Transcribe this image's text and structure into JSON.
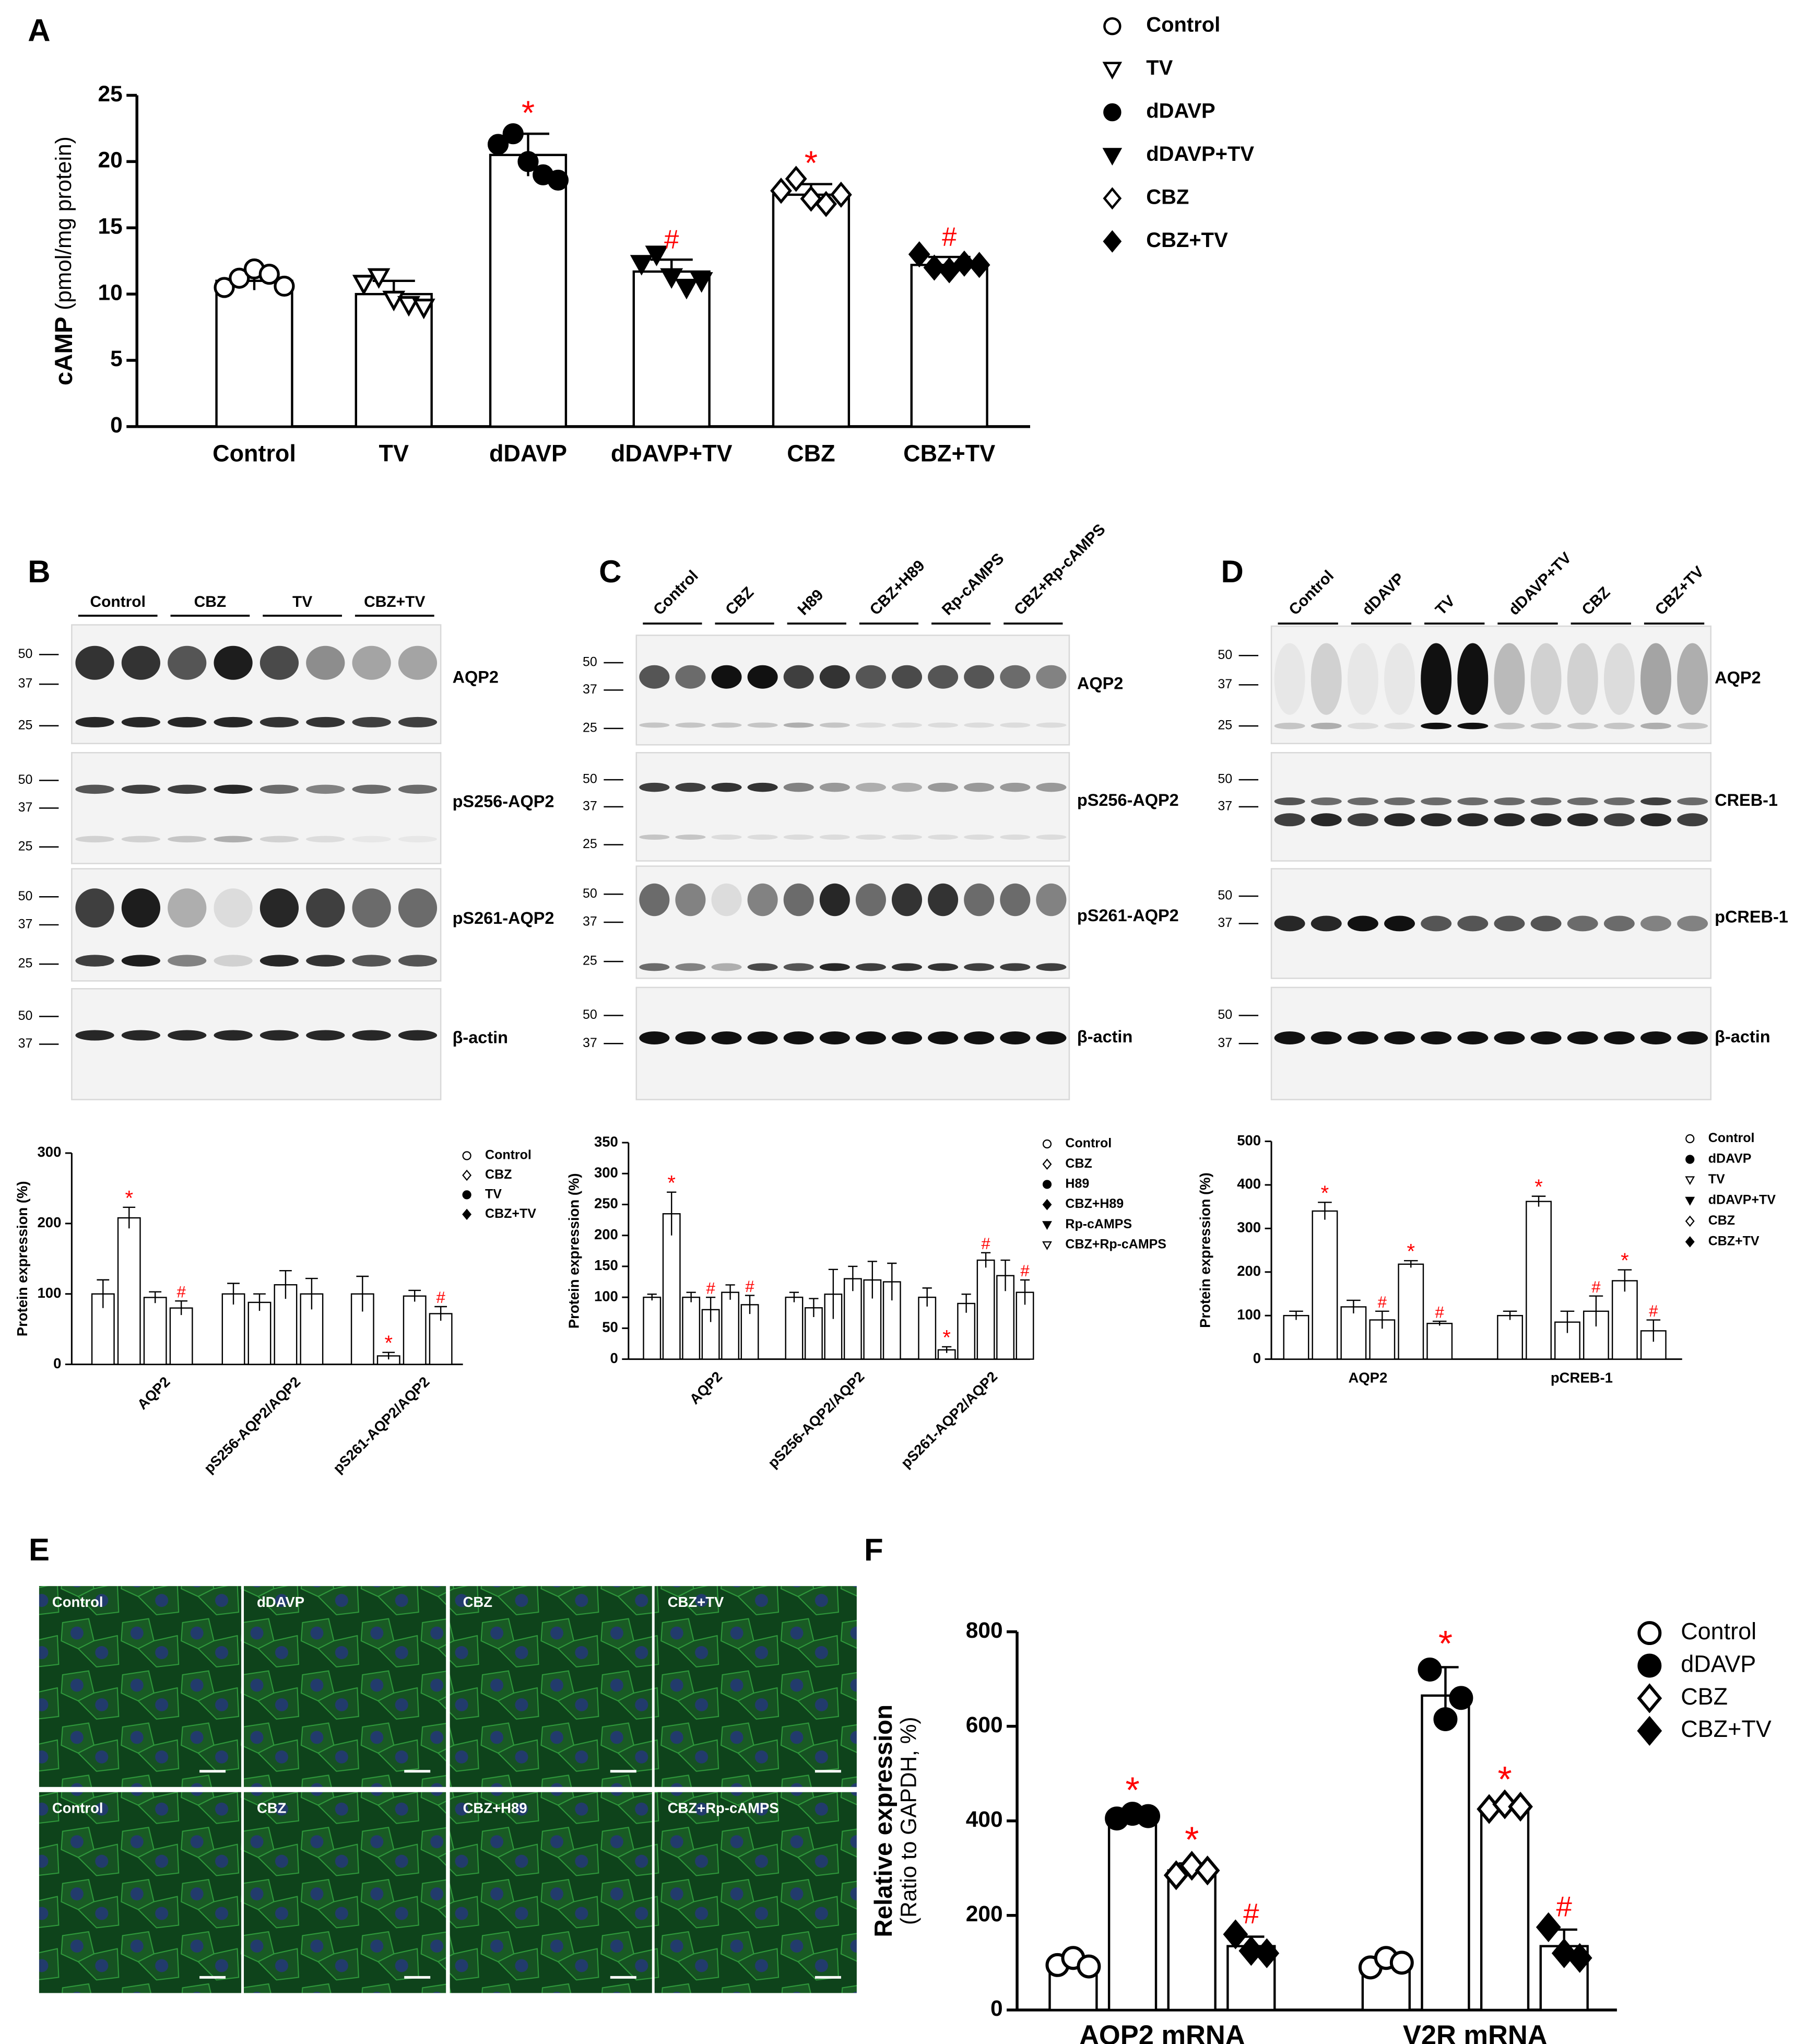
{
  "panel_letters": [
    "A",
    "B",
    "C",
    "D",
    "E",
    "F"
  ],
  "chart_data": [
    {
      "type": "bar",
      "ylabel_bold": "cAMP",
      "ylabel": "(pmol/mg protein)",
      "categories": [
        "Control",
        "TV",
        "dDAVP",
        "dDAVP+TV",
        "CBZ",
        "CBZ+TV"
      ],
      "values": [
        11,
        10,
        20.5,
        11.7,
        17.5,
        12.2
      ],
      "errors": [
        0.7,
        1.0,
        1.6,
        0.9,
        0.8,
        0.6
      ],
      "points": [
        [
          10.5,
          11.2,
          11.9,
          11.5,
          10.6
        ],
        [
          10.8,
          11.3,
          9.6,
          9.2,
          9.0
        ],
        [
          21.3,
          22.1,
          20.0,
          19.0,
          18.6
        ],
        [
          12.3,
          13.0,
          11.3,
          10.5,
          11.0
        ],
        [
          17.8,
          18.7,
          17.2,
          16.8,
          17.5
        ],
        [
          13.0,
          12.0,
          11.8,
          12.3,
          12.2
        ]
      ],
      "markers": [
        "circle-open",
        "triangle-down-open",
        "circle",
        "triangle-down",
        "diamond-open",
        "diamond"
      ],
      "annotations": [
        null,
        null,
        "*",
        "#",
        "*",
        "#"
      ],
      "annotation_color": "#ff0000",
      "bar_color": "#ffffff",
      "ylim": [
        0,
        25
      ],
      "yticks": [
        0,
        5,
        10,
        15,
        20,
        25
      ],
      "legend": true
    },
    {
      "type": "grouped-bar",
      "ylabel": "Protein expression (%)",
      "categories": [
        "AQP2",
        "pS256-AQP2/AQP2",
        "pS261-AQP2/AQP2"
      ],
      "series": [
        {
          "name": "Control",
          "marker": "circle-open",
          "values": [
            100,
            100,
            100
          ],
          "errors": [
            20,
            15,
            25
          ],
          "annotations": [
            null,
            null,
            null
          ]
        },
        {
          "name": "CBZ",
          "marker": "diamond-open",
          "values": [
            208,
            88,
            12
          ],
          "errors": [
            15,
            12,
            5
          ],
          "annotations": [
            "*",
            null,
            "*"
          ]
        },
        {
          "name": "TV",
          "marker": "circle",
          "values": [
            95,
            113,
            97
          ],
          "errors": [
            8,
            20,
            8
          ],
          "annotations": [
            null,
            null,
            null
          ]
        },
        {
          "name": "CBZ+TV",
          "marker": "diamond",
          "values": [
            80,
            100,
            72
          ],
          "errors": [
            10,
            22,
            10
          ],
          "annotations": [
            "#",
            null,
            "#"
          ]
        }
      ],
      "annotation_color": "#ff0000",
      "bar_color": "#ffffff",
      "ylim": [
        0,
        300
      ],
      "yticks": [
        0,
        100,
        200,
        300
      ],
      "legend": true
    },
    {
      "type": "grouped-bar",
      "ylabel": "Protein expression (%)",
      "categories": [
        "AQP2",
        "pS256-AQP2/AQP2",
        "pS261-AQP2/AQP2"
      ],
      "series": [
        {
          "name": "Control",
          "marker": "circle-open",
          "values": [
            100,
            100,
            100
          ],
          "errors": [
            5,
            8,
            15
          ],
          "annotations": [
            null,
            null,
            null
          ]
        },
        {
          "name": "CBZ",
          "marker": "diamond-open",
          "values": [
            235,
            83,
            15
          ],
          "errors": [
            35,
            15,
            5
          ],
          "annotations": [
            "*",
            null,
            "*"
          ]
        },
        {
          "name": "H89",
          "marker": "circle",
          "values": [
            100,
            105,
            90
          ],
          "errors": [
            8,
            40,
            15
          ],
          "annotations": [
            null,
            null,
            null
          ]
        },
        {
          "name": "CBZ+H89",
          "marker": "diamond",
          "values": [
            80,
            130,
            160
          ],
          "errors": [
            20,
            20,
            12
          ],
          "annotations": [
            "#",
            null,
            "#"
          ]
        },
        {
          "name": "Rp-cAMPS",
          "marker": "triangle-down",
          "values": [
            108,
            128,
            135
          ],
          "errors": [
            12,
            30,
            25
          ],
          "annotations": [
            null,
            null,
            null
          ]
        },
        {
          "name": "CBZ+Rp-cAMPS",
          "marker": "triangle-down-open",
          "values": [
            88,
            125,
            108
          ],
          "errors": [
            15,
            30,
            20
          ],
          "annotations": [
            "#",
            null,
            "#"
          ]
        }
      ],
      "annotation_color": "#ff0000",
      "bar_color": "#ffffff",
      "ylim": [
        0,
        350
      ],
      "yticks": [
        0,
        50,
        100,
        150,
        200,
        250,
        300,
        350
      ],
      "legend": true
    },
    {
      "type": "grouped-bar",
      "ylabel": "Protein expression (%)",
      "categories": [
        "AQP2",
        "pCREB-1"
      ],
      "series": [
        {
          "name": "Control",
          "marker": "circle-open",
          "values": [
            100,
            100
          ],
          "errors": [
            10,
            10
          ],
          "annotations": [
            null,
            null
          ]
        },
        {
          "name": "dDAVP",
          "marker": "circle",
          "values": [
            340,
            362
          ],
          "errors": [
            20,
            12
          ],
          "annotations": [
            "*",
            "*"
          ]
        },
        {
          "name": "TV",
          "marker": "triangle-down-open",
          "values": [
            120,
            85
          ],
          "errors": [
            15,
            25
          ],
          "annotations": [
            null,
            null
          ]
        },
        {
          "name": "dDAVP+TV",
          "marker": "triangle-down",
          "values": [
            90,
            110
          ],
          "errors": [
            20,
            35
          ],
          "annotations": [
            "#",
            "#"
          ]
        },
        {
          "name": "CBZ",
          "marker": "diamond-open",
          "values": [
            218,
            180
          ],
          "errors": [
            8,
            25
          ],
          "annotations": [
            "*",
            "*"
          ]
        },
        {
          "name": "CBZ+TV",
          "marker": "diamond",
          "values": [
            82,
            65
          ],
          "errors": [
            5,
            25
          ],
          "annotations": [
            "#",
            "#"
          ]
        }
      ],
      "annotation_color": "#ff0000",
      "bar_color": "#ffffff",
      "ylim": [
        0,
        500
      ],
      "yticks": [
        0,
        100,
        200,
        300,
        400,
        500
      ],
      "legend": true
    },
    {
      "type": "grouped-bar",
      "ylabel": [
        "Relative expression",
        "(Ratio to GAPDH, %)"
      ],
      "categories": [
        "AQP2 mRNA",
        "V2R mRNA"
      ],
      "series": [
        {
          "name": "Control",
          "marker": "circle-open",
          "values": [
            100,
            100
          ],
          "errors": [
            10,
            12
          ],
          "points": [
            [
              95,
              110,
              92
            ],
            [
              90,
              110,
              100
            ]
          ],
          "annotations": [
            null,
            null
          ]
        },
        {
          "name": "dDAVP",
          "marker": "circle",
          "values": [
            410,
            665
          ],
          "errors": [
            5,
            60
          ],
          "points": [
            [
              405,
              415,
              410
            ],
            [
              720,
              615,
              660
            ]
          ],
          "annotations": [
            "*",
            "*"
          ]
        },
        {
          "name": "CBZ",
          "marker": "diamond-open",
          "values": [
            295,
            430
          ],
          "errors": [
            15,
            8
          ],
          "points": [
            [
              285,
              305,
              295
            ],
            [
              425,
              435,
              430
            ]
          ],
          "annotations": [
            "*",
            "*"
          ]
        },
        {
          "name": "CBZ+TV",
          "marker": "diamond",
          "values": [
            135,
            135
          ],
          "errors": [
            20,
            35
          ],
          "points": [
            [
              160,
              125,
              120
            ],
            [
              175,
              120,
              110
            ]
          ],
          "annotations": [
            "#",
            "#"
          ]
        }
      ],
      "annotation_color": "#ff0000",
      "bar_color": "#ffffff",
      "ylim": [
        0,
        800
      ],
      "yticks": [
        0,
        200,
        400,
        600,
        800
      ],
      "legend": true
    }
  ],
  "blots": [
    {
      "lanes": [
        "Control",
        "CBZ",
        "TV",
        "CBZ+TV"
      ],
      "strips": [
        {
          "label": "AQP2",
          "mw": [
            50,
            37,
            25
          ]
        },
        {
          "label": "pS256-AQP2",
          "mw": [
            50,
            37,
            25
          ]
        },
        {
          "label": "pS261-AQP2",
          "mw": [
            50,
            37,
            25
          ]
        },
        {
          "label": "β-actin",
          "mw": [
            50,
            37
          ]
        }
      ]
    },
    {
      "lanes": [
        "Control",
        "CBZ",
        "H89",
        "CBZ+H89",
        "Rp-cAMPS",
        "CBZ+Rp-cAMPS"
      ],
      "strips": [
        {
          "label": "AQP2",
          "mw": [
            50,
            37,
            25
          ]
        },
        {
          "label": "pS256-AQP2",
          "mw": [
            50,
            37,
            25
          ]
        },
        {
          "label": "pS261-AQP2",
          "mw": [
            50,
            37,
            25
          ]
        },
        {
          "label": "β-actin",
          "mw": [
            50,
            37
          ]
        }
      ]
    },
    {
      "lanes": [
        "Control",
        "dDAVP",
        "TV",
        "dDAVP+TV",
        "CBZ",
        "CBZ+TV"
      ],
      "strips": [
        {
          "label": "AQP2",
          "mw": [
            50,
            37,
            25
          ]
        },
        {
          "label": "CREB-1",
          "mw": [
            50,
            37
          ]
        },
        {
          "label": "pCREB-1",
          "mw": [
            50,
            37
          ]
        },
        {
          "label": "β-actin",
          "mw": [
            50,
            37
          ]
        }
      ]
    }
  ],
  "images": {
    "rows": [
      [
        "Control",
        "dDAVP",
        "CBZ",
        "CBZ+TV"
      ],
      [
        "Control",
        "CBZ",
        "CBZ+H89",
        "CBZ+Rp-cAMPS"
      ]
    ]
  }
}
